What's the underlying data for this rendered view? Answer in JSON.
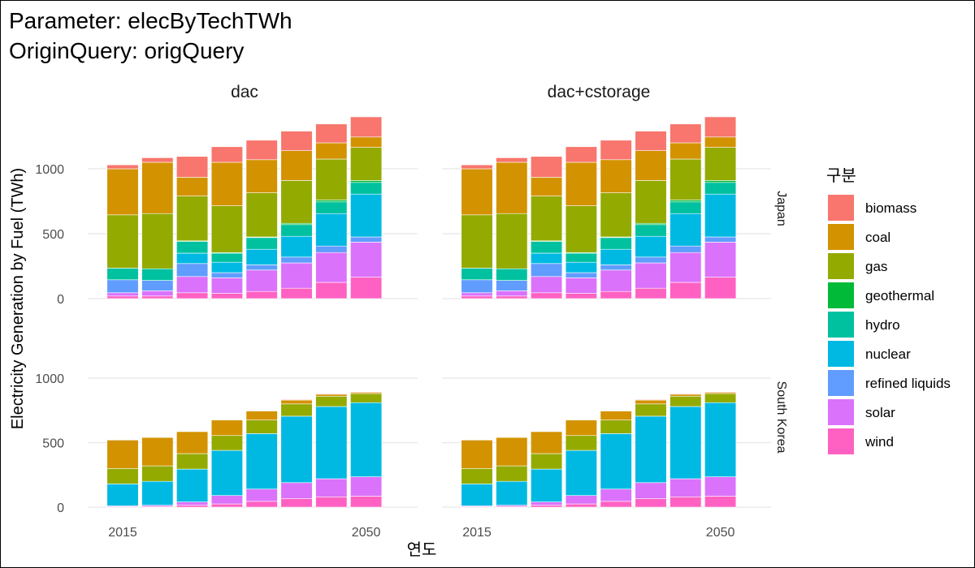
{
  "title_lines": [
    "Parameter: elecByTechTWh",
    "OriginQuery: origQuery"
  ],
  "chart_data": {
    "type": "bar",
    "stacked": true,
    "xlabel": "연도",
    "ylabel": "Electricity Generation by Fuel (TWh)",
    "x_tick_labels": [
      "2015",
      "2050"
    ],
    "y_ticks": [
      0,
      500,
      1000
    ],
    "ylim": [
      0,
      1400
    ],
    "columns": [
      "dac",
      "dac+cstorage"
    ],
    "rows": [
      "Japan",
      "South Korea"
    ],
    "x": [
      2015,
      2020,
      2025,
      2030,
      2035,
      2040,
      2045,
      2050
    ],
    "legend": {
      "title": "구분",
      "placement": "right",
      "entries": [
        "biomass",
        "coal",
        "gas",
        "geothermal",
        "hydro",
        "nuclear",
        "refined liquids",
        "solar",
        "wind"
      ]
    },
    "colors": {
      "biomass": "#F8766D",
      "coal": "#D39200",
      "gas": "#93AA00",
      "geothermal": "#00BA38",
      "hydro": "#00C19F",
      "nuclear": "#00B9E3",
      "refined liquids": "#619CFF",
      "solar": "#DB72FB",
      "wind": "#FF61C3"
    },
    "series_order": [
      "wind",
      "solar",
      "refined liquids",
      "nuclear",
      "hydro",
      "geothermal",
      "gas",
      "coal",
      "biomass"
    ],
    "grid": true,
    "panels": [
      {
        "column": "dac",
        "row": "Japan",
        "series": {
          "wind": [
            20,
            20,
            45,
            40,
            55,
            80,
            125,
            165
          ],
          "solar": [
            25,
            40,
            125,
            120,
            165,
            195,
            230,
            270
          ],
          "refined liquids": [
            100,
            80,
            100,
            40,
            40,
            45,
            50,
            40
          ],
          "nuclear": [
            0,
            0,
            80,
            80,
            120,
            160,
            250,
            330
          ],
          "hydro": [
            90,
            90,
            90,
            70,
            90,
            90,
            90,
            90
          ],
          "geothermal": [
            0,
            0,
            5,
            5,
            5,
            10,
            15,
            15
          ],
          "gas": [
            410,
            425,
            345,
            360,
            340,
            330,
            315,
            255
          ],
          "coal": [
            355,
            395,
            145,
            335,
            255,
            230,
            125,
            80
          ],
          "biomass": [
            30,
            35,
            160,
            120,
            150,
            150,
            145,
            155
          ]
        }
      },
      {
        "column": "dac+cstorage",
        "row": "Japan",
        "series": {
          "wind": [
            20,
            20,
            45,
            40,
            55,
            80,
            125,
            165
          ],
          "solar": [
            25,
            40,
            125,
            120,
            165,
            195,
            230,
            270
          ],
          "refined liquids": [
            100,
            80,
            100,
            40,
            40,
            45,
            50,
            40
          ],
          "nuclear": [
            0,
            0,
            80,
            80,
            120,
            160,
            250,
            330
          ],
          "hydro": [
            90,
            90,
            90,
            70,
            90,
            90,
            90,
            90
          ],
          "geothermal": [
            0,
            0,
            5,
            5,
            5,
            10,
            15,
            15
          ],
          "gas": [
            410,
            425,
            345,
            360,
            340,
            330,
            315,
            255
          ],
          "coal": [
            355,
            395,
            145,
            335,
            255,
            230,
            125,
            80
          ],
          "biomass": [
            30,
            35,
            160,
            120,
            150,
            150,
            145,
            155
          ]
        }
      },
      {
        "column": "dac",
        "row": "South Korea",
        "series": {
          "wind": [
            3,
            5,
            15,
            25,
            45,
            65,
            80,
            85
          ],
          "solar": [
            7,
            10,
            25,
            65,
            95,
            125,
            140,
            150
          ],
          "refined liquids": [
            0,
            0,
            0,
            0,
            0,
            0,
            0,
            0
          ],
          "nuclear": [
            170,
            185,
            255,
            350,
            430,
            515,
            560,
            575
          ],
          "hydro": [
            0,
            0,
            0,
            0,
            0,
            0,
            0,
            0
          ],
          "geothermal": [
            0,
            0,
            0,
            0,
            0,
            0,
            0,
            0
          ],
          "gas": [
            120,
            120,
            120,
            115,
            105,
            95,
            80,
            70
          ],
          "coal": [
            220,
            220,
            170,
            120,
            70,
            30,
            15,
            10
          ],
          "biomass": [
            0,
            0,
            0,
            0,
            0,
            5,
            5,
            5
          ]
        }
      },
      {
        "column": "dac+cstorage",
        "row": "South Korea",
        "series": {
          "wind": [
            3,
            5,
            15,
            25,
            45,
            65,
            80,
            85
          ],
          "solar": [
            7,
            10,
            25,
            65,
            95,
            125,
            140,
            150
          ],
          "refined liquids": [
            0,
            0,
            0,
            0,
            0,
            0,
            0,
            0
          ],
          "nuclear": [
            170,
            185,
            255,
            350,
            430,
            515,
            560,
            575
          ],
          "hydro": [
            0,
            0,
            0,
            0,
            0,
            0,
            0,
            0
          ],
          "geothermal": [
            0,
            0,
            0,
            0,
            0,
            0,
            0,
            0
          ],
          "gas": [
            120,
            120,
            120,
            115,
            105,
            95,
            80,
            70
          ],
          "coal": [
            220,
            220,
            170,
            120,
            70,
            30,
            15,
            10
          ],
          "biomass": [
            0,
            0,
            0,
            0,
            0,
            5,
            5,
            5
          ]
        }
      }
    ]
  }
}
